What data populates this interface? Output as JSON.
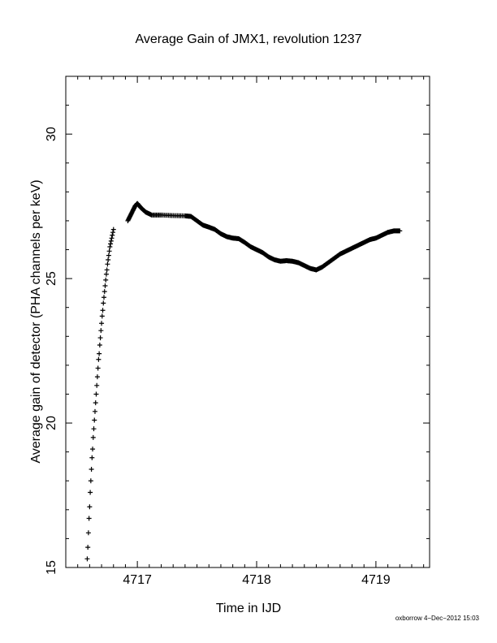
{
  "chart_data": {
    "type": "scatter",
    "marker": "plus",
    "title": "Average Gain of JMX1, revolution 1237",
    "xlabel": "Time in IJD",
    "ylabel": "Average gain of detector (PHA channels per keV)",
    "xlim": [
      4716.4,
      4719.45
    ],
    "ylim": [
      15,
      32
    ],
    "xticks": [
      4717,
      4718,
      4719
    ],
    "yticks": [
      15,
      20,
      25,
      30
    ],
    "grid": false,
    "series": [
      {
        "segment": "ramp",
        "x": [
          4716.58,
          4716.585,
          4716.59,
          4716.595,
          4716.6,
          4716.605,
          4716.61,
          4716.615,
          4716.62,
          4716.625,
          4716.63,
          4716.635,
          4716.64,
          4716.645,
          4716.65,
          4716.655,
          4716.66,
          4716.665,
          4716.67,
          4716.675,
          4716.68,
          4716.685,
          4716.69,
          4716.695,
          4716.7,
          4716.705,
          4716.71,
          4716.715,
          4716.72,
          4716.725,
          4716.73,
          4716.735,
          4716.74,
          4716.745,
          4716.75,
          4716.755,
          4716.76,
          4716.765,
          4716.77,
          4716.775,
          4716.78,
          4716.785,
          4716.79,
          4716.795,
          4716.8
        ],
        "y": [
          15.3,
          15.7,
          16.2,
          16.7,
          17.1,
          17.6,
          18.0,
          18.4,
          18.8,
          19.1,
          19.5,
          19.8,
          20.1,
          20.4,
          20.7,
          21.0,
          21.3,
          21.6,
          21.9,
          22.2,
          22.4,
          22.7,
          22.95,
          23.2,
          23.45,
          23.7,
          23.9,
          24.15,
          24.35,
          24.55,
          24.75,
          24.95,
          25.15,
          25.3,
          25.5,
          25.65,
          25.8,
          25.95,
          26.1,
          26.2,
          26.3,
          26.4,
          26.5,
          26.6,
          26.7
        ]
      },
      {
        "segment": "main",
        "x": [
          4716.92,
          4716.95,
          4716.98,
          4717.0,
          4717.03,
          4717.07,
          4717.12,
          4717.2,
          4717.3,
          4717.4,
          4717.45,
          4717.5,
          4717.55,
          4717.6,
          4717.65,
          4717.7,
          4717.75,
          4717.8,
          4717.85,
          4717.9,
          4717.95,
          4718.0,
          4718.05,
          4718.1,
          4718.15,
          4718.2,
          4718.25,
          4718.3,
          4718.35,
          4718.4,
          4718.45,
          4718.5,
          4718.55,
          4718.6,
          4718.65,
          4718.7,
          4718.75,
          4718.8,
          4718.85,
          4718.9,
          4718.95,
          4719.0,
          4719.05,
          4719.1,
          4719.15,
          4719.2
        ],
        "y": [
          27.0,
          27.25,
          27.5,
          27.6,
          27.45,
          27.3,
          27.2,
          27.2,
          27.18,
          27.17,
          27.15,
          27.0,
          26.85,
          26.78,
          26.7,
          26.55,
          26.45,
          26.4,
          26.38,
          26.25,
          26.1,
          26.0,
          25.9,
          25.75,
          25.65,
          25.6,
          25.62,
          25.6,
          25.55,
          25.45,
          25.35,
          25.3,
          25.4,
          25.55,
          25.7,
          25.85,
          25.95,
          26.05,
          26.15,
          26.25,
          26.35,
          26.4,
          26.5,
          26.6,
          26.65,
          26.65
        ]
      }
    ]
  },
  "footer": "oxborrow 4−Dec−2012 15:03"
}
